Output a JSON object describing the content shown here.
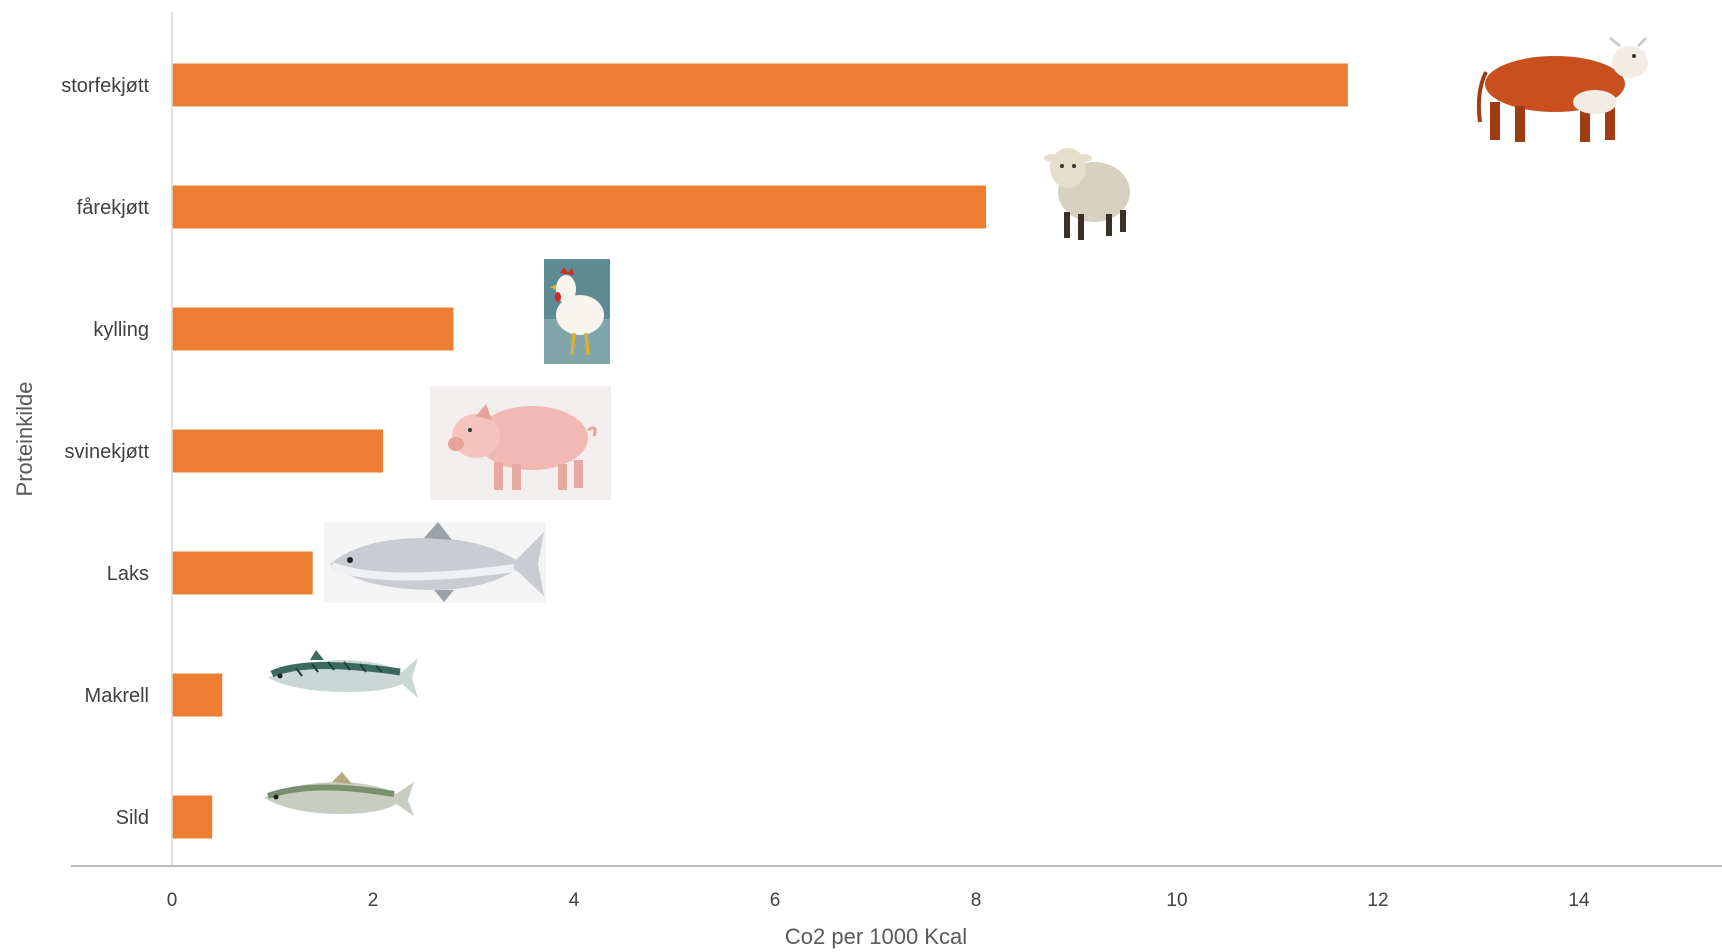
{
  "chart_data": {
    "type": "bar",
    "orientation": "horizontal",
    "categories": [
      "storfekjøtt",
      "fårekjøtt",
      "kylling",
      "svinekjøtt",
      "Laks",
      "Makrell",
      "Sild"
    ],
    "values": [
      11.7,
      8.1,
      2.8,
      2.1,
      1.4,
      0.5,
      0.4
    ],
    "xlabel": "Co2 per 1000 Kcal",
    "ylabel": "Proteinkilde",
    "xlim": [
      0,
      14
    ],
    "xticks": [
      "0",
      "2",
      "4",
      "6",
      "8",
      "10",
      "12",
      "14"
    ],
    "bar_color": "#ED7D31",
    "grid": false,
    "legend": "none",
    "illustrations": [
      "cow-icon",
      "sheep-icon",
      "chicken-icon",
      "pig-icon",
      "salmon-icon",
      "mackerel-icon",
      "herring-icon"
    ]
  }
}
